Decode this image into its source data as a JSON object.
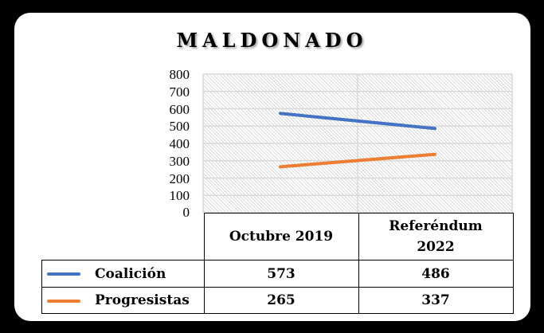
{
  "title": "MALDONADO",
  "colors": {
    "coalicion": "#4472C4",
    "progresistas": "#ED7D31",
    "grid": "#d9d9d9"
  },
  "y_axis": {
    "ticks": [
      "800",
      "700",
      "600",
      "500",
      "400",
      "300",
      "200",
      "100",
      "0"
    ]
  },
  "table": {
    "headers": [
      "Octubre 2019",
      "Referéndum 2022"
    ],
    "rows": [
      {
        "label": "Coalición",
        "values": [
          "573",
          "486"
        ]
      },
      {
        "label": "Progresistas",
        "values": [
          "265",
          "337"
        ]
      }
    ]
  },
  "chart_data": {
    "type": "line",
    "title": "MALDONADO",
    "categories": [
      "Octubre 2019",
      "Referéndum 2022"
    ],
    "series": [
      {
        "name": "Coalición",
        "values": [
          573,
          486
        ],
        "color": "#4472C4"
      },
      {
        "name": "Progresistas",
        "values": [
          265,
          337
        ],
        "color": "#ED7D31"
      }
    ],
    "xlabel": "",
    "ylabel": "",
    "ylim": [
      0,
      800
    ],
    "yticks": [
      0,
      100,
      200,
      300,
      400,
      500,
      600,
      700,
      800
    ],
    "grid": true,
    "legend_position": "data-table"
  }
}
